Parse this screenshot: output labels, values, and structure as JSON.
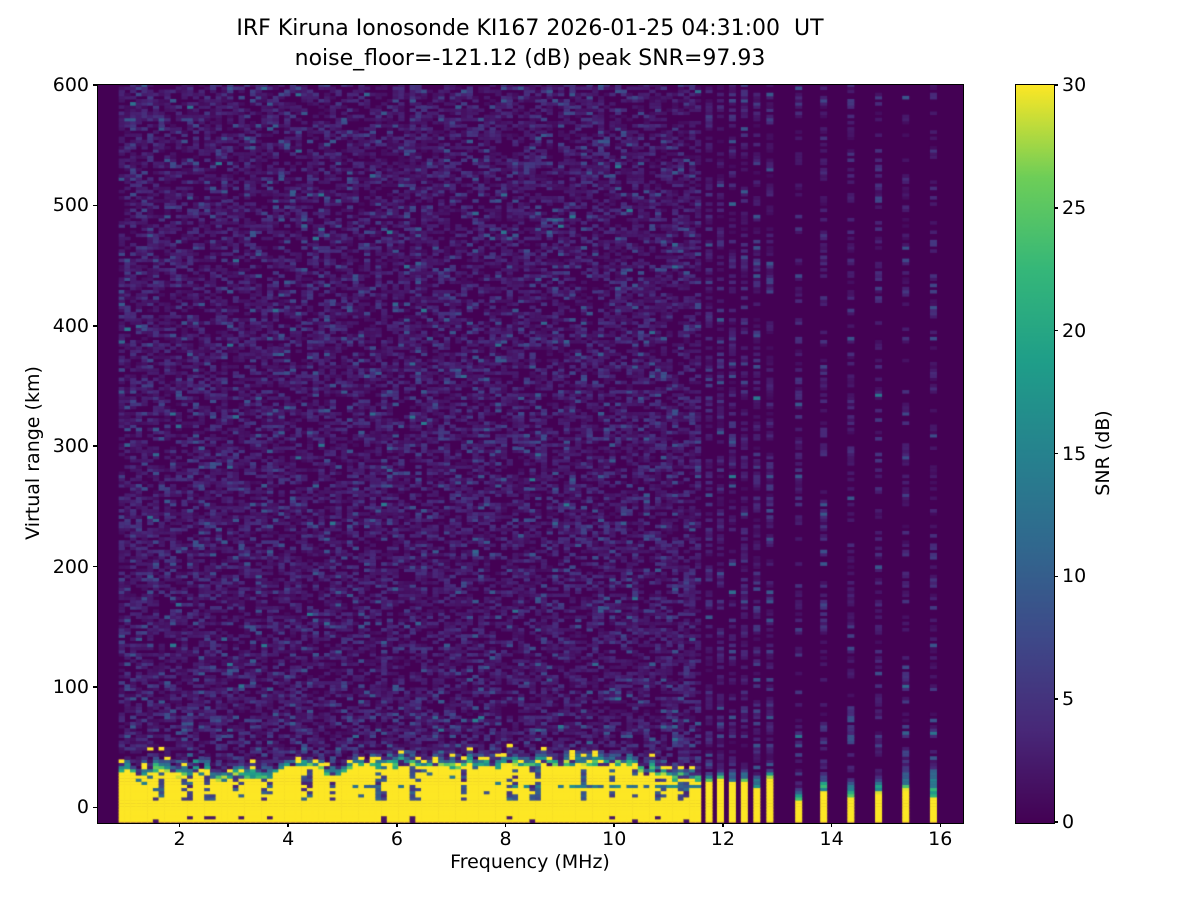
{
  "chart_data": {
    "type": "heatmap",
    "title_line1": "IRF Kiruna Ionosonde KI167 2026-01-25 04:31:00  UT",
    "title_line2": "noise_floor=-121.12 (dB) peak SNR=97.93",
    "xlabel": "Frequency (MHz)",
    "ylabel": "Virtual range (km)",
    "xlim": [
      0.5,
      16.4
    ],
    "ylim": [
      -12.2,
      600
    ],
    "x_ticks": [
      2,
      4,
      6,
      8,
      10,
      12,
      14,
      16
    ],
    "y_ticks": [
      0,
      100,
      200,
      300,
      400,
      500,
      600
    ],
    "grid": false,
    "colorbar": {
      "label": "SNR (dB)",
      "ticks": [
        0,
        5,
        10,
        15,
        20,
        25,
        30
      ],
      "vmin": 0,
      "vmax": 30,
      "colormap": "viridis"
    },
    "colormap_stops": [
      "#440154",
      "#482878",
      "#3e4989",
      "#31688e",
      "#26828e",
      "#1f9e89",
      "#35b779",
      "#6ece58",
      "#fde725"
    ],
    "no_data_color": "#440154",
    "sweep": {
      "start_mhz": 0.88,
      "continuous_end_mhz": 11.56,
      "column_step_mhz": 0.105,
      "row_step_km": 2.6
    },
    "ground_echo_band": {
      "saturated_snr_db": 30,
      "typical_top_km": 22,
      "left_region_top_boost_below_mhz": 1.9,
      "cap_transition_km": 12
    },
    "notch_freqs_mhz": [
      1.55,
      2.1,
      2.5,
      3.05,
      3.55,
      4.3,
      4.75,
      5.65,
      6.3,
      7.2,
      8.05,
      8.5,
      9.4,
      9.9,
      10.35,
      10.8,
      11.2
    ],
    "stripe_freqs_mhz": [
      11.74,
      11.95,
      12.17,
      12.39,
      12.62,
      12.86,
      13.39,
      13.85,
      14.35,
      14.86,
      15.36,
      15.87
    ],
    "stripe_group_split_mhz": 13.1,
    "stripe_width_mhz": 0.12,
    "seed": 42
  }
}
